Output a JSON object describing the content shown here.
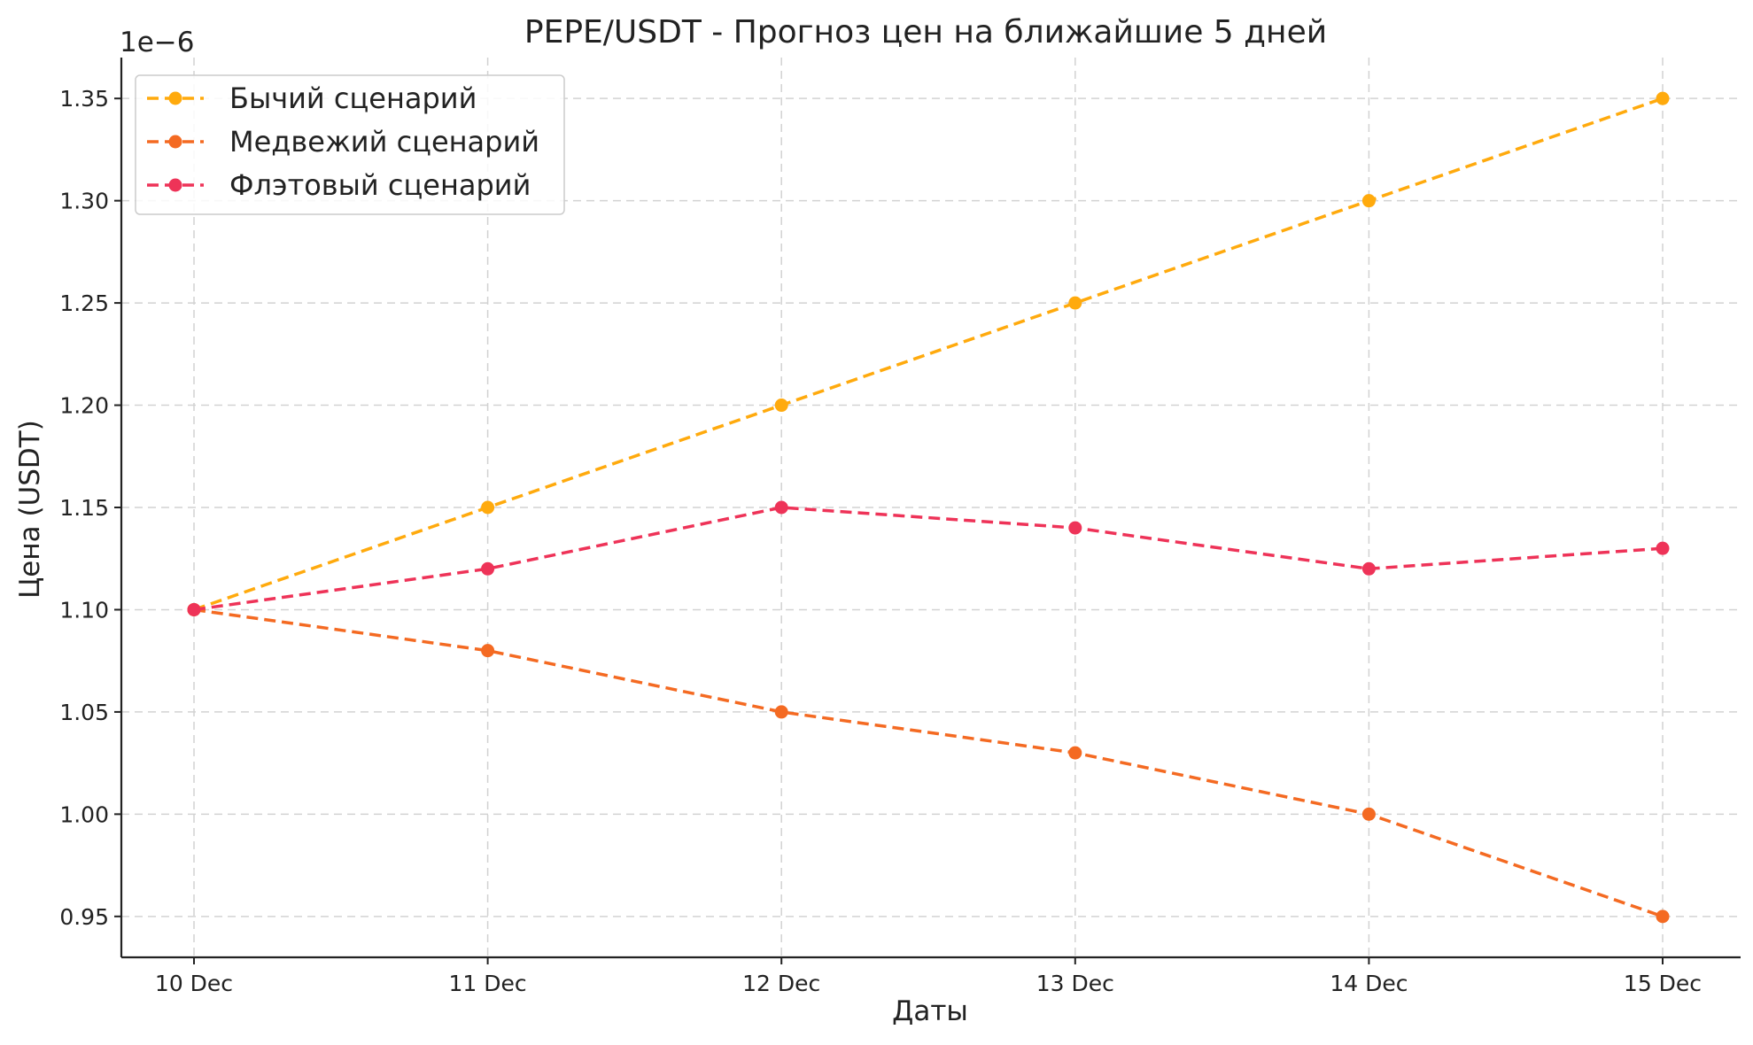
{
  "chart_data": {
    "type": "line",
    "title": "PEPE/USDT - Прогноз цен на ближайшие 5 дней",
    "xlabel": "Даты",
    "ylabel": "Цена (USDT)",
    "y_offset_label": "1e−6",
    "categories": [
      "10 Dec",
      "11 Dec",
      "12 Dec",
      "13 Dec",
      "14 Dec",
      "15 Dec"
    ],
    "ylim": [
      9.3e-07,
      1.37e-06
    ],
    "yticks": [
      9.5e-07,
      1e-06,
      1.05e-06,
      1.1e-06,
      1.15e-06,
      1.2e-06,
      1.25e-06,
      1.3e-06,
      1.35e-06
    ],
    "ytick_labels": [
      "0.95",
      "1.00",
      "1.05",
      "1.10",
      "1.15",
      "1.20",
      "1.25",
      "1.30",
      "1.35"
    ],
    "grid": true,
    "legend_position": "top-left",
    "series": [
      {
        "name": "Бычий сценарий",
        "color": "#FFAA0D",
        "line_style": "dashed",
        "marker": "circle",
        "values": [
          1.1e-06,
          1.15e-06,
          1.2e-06,
          1.25e-06,
          1.3e-06,
          1.35e-06
        ]
      },
      {
        "name": "Медвежий сценарий",
        "color": "#F46A22",
        "line_style": "dashed",
        "marker": "circle",
        "values": [
          1.1e-06,
          1.08e-06,
          1.05e-06,
          1.03e-06,
          1e-06,
          9.5e-07
        ]
      },
      {
        "name": "Флэтовый сценарий",
        "color": "#EE3358",
        "line_style": "dashed",
        "marker": "circle",
        "values": [
          1.1e-06,
          1.12e-06,
          1.15e-06,
          1.14e-06,
          1.12e-06,
          1.13e-06
        ]
      }
    ]
  }
}
